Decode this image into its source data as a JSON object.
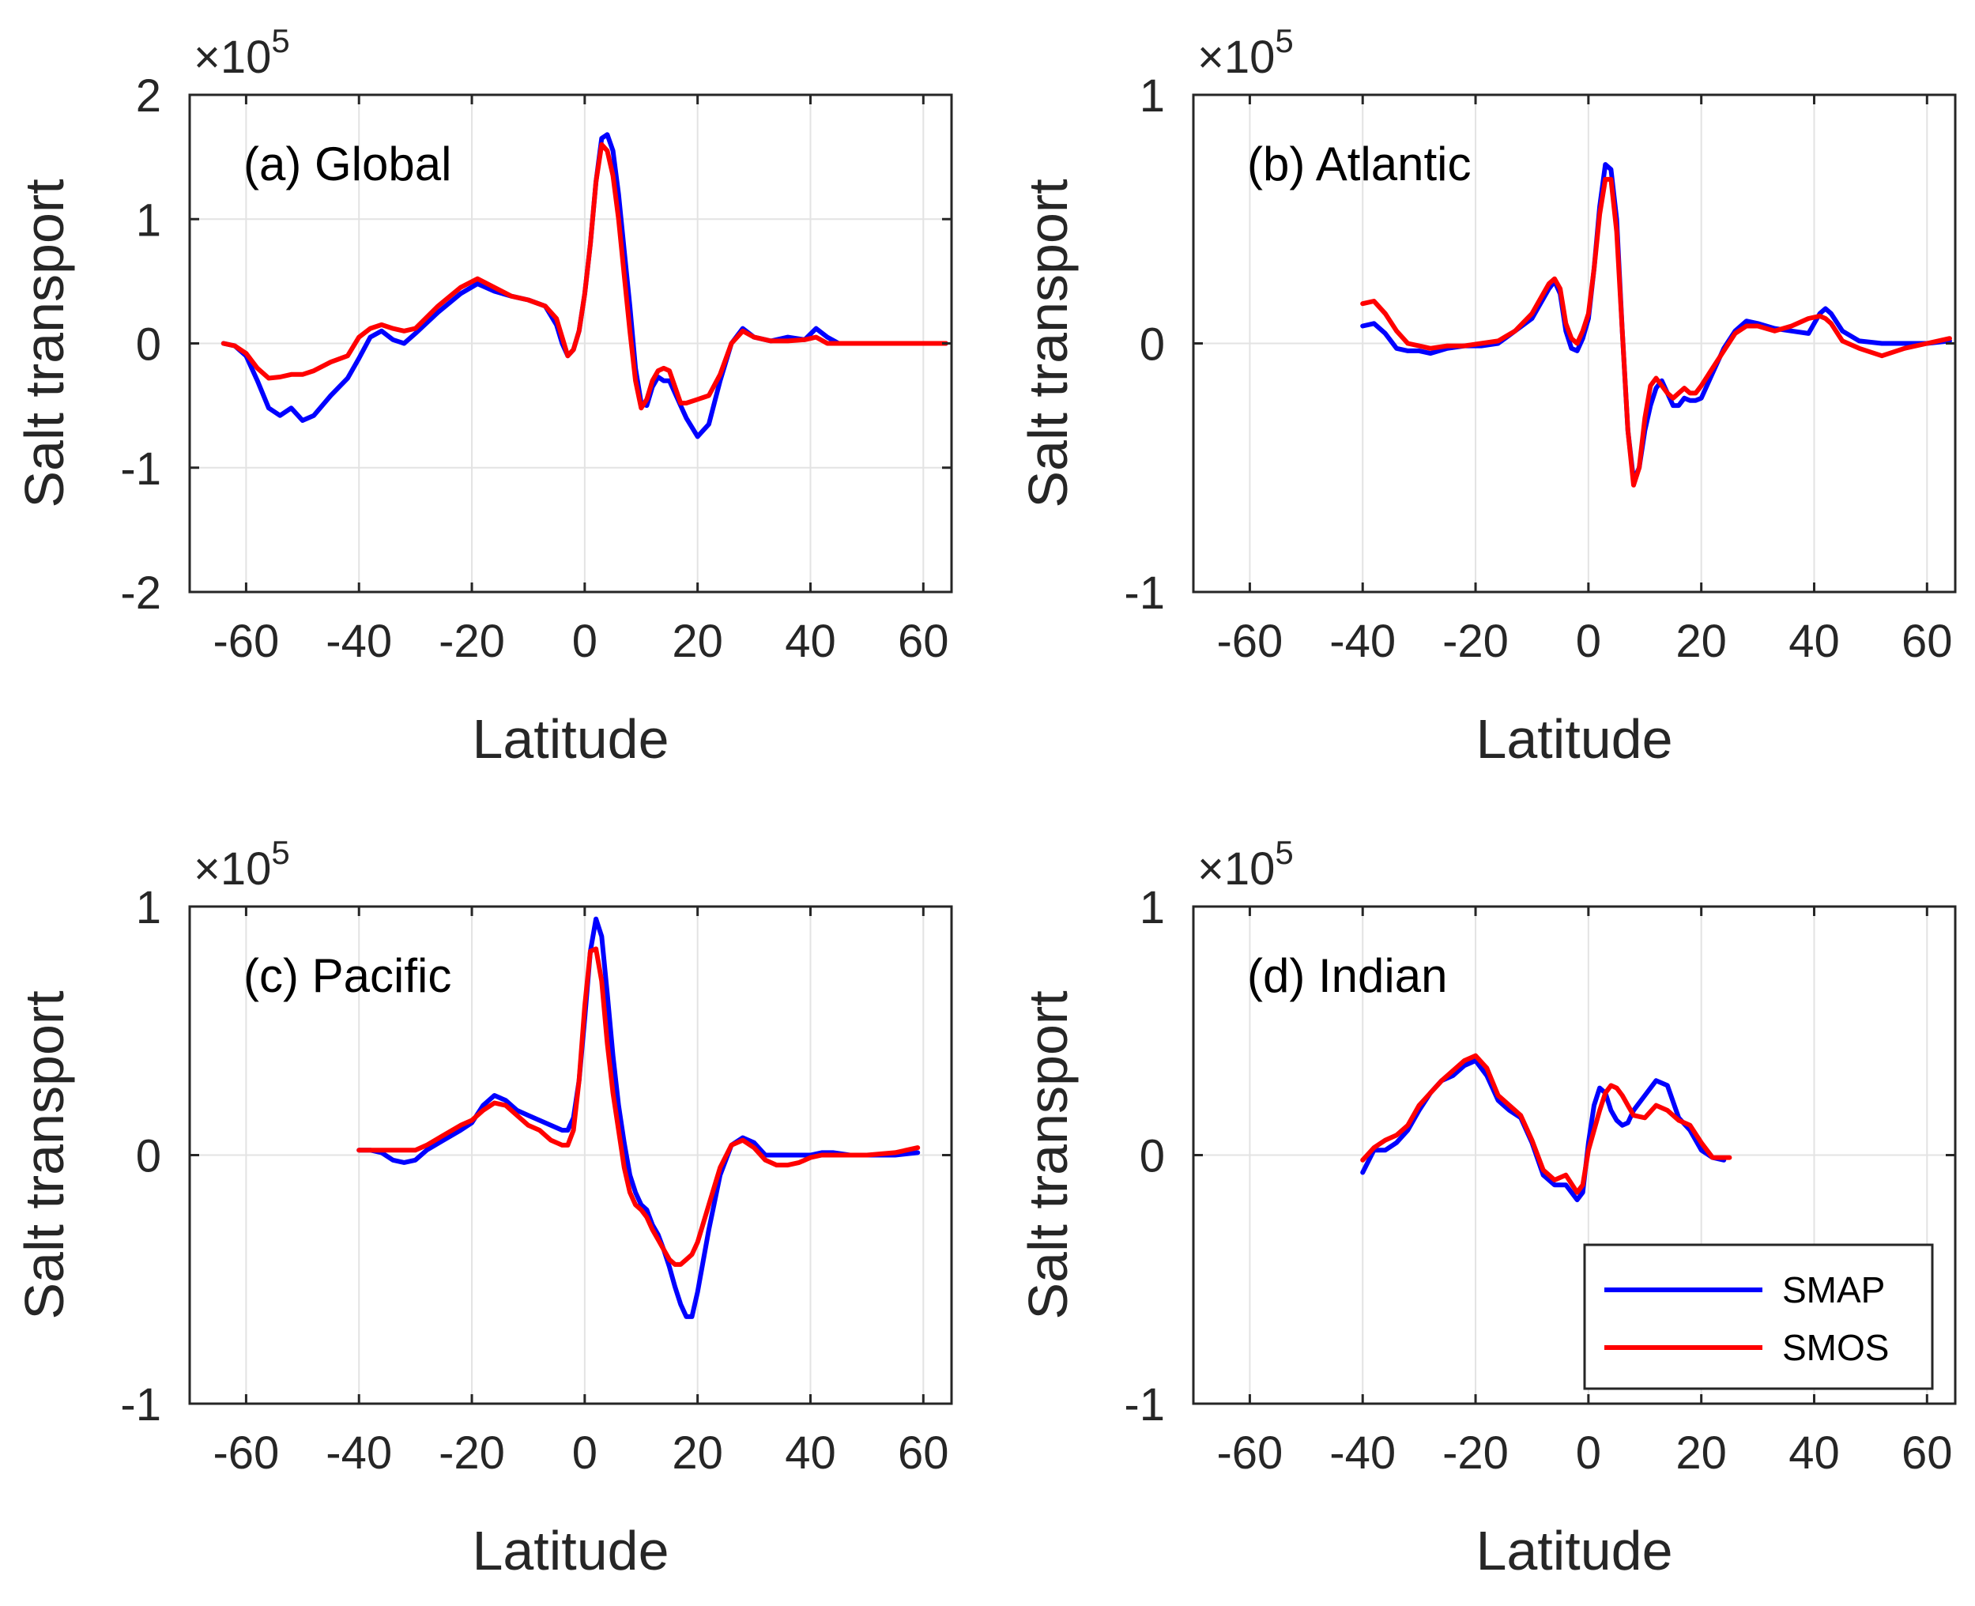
{
  "chart_data": [
    {
      "type": "line",
      "title": "(a) Global",
      "xlabel": "Latitude",
      "ylabel": "Salt transport",
      "exponent_label": "×10",
      "exponent": "5",
      "xlim": [
        -70,
        65
      ],
      "ylim": [
        -2,
        2
      ],
      "xticks": [
        "-60",
        "-40",
        "-20",
        "0",
        "20",
        "40",
        "60"
      ],
      "yticks": [
        "-2",
        "-1",
        "0",
        "1",
        "2"
      ],
      "series": [
        {
          "name": "SMAP",
          "color": "#0000ff",
          "x": [
            -64,
            -62,
            -60,
            -58,
            -56,
            -54,
            -52,
            -50,
            -48,
            -45,
            -42,
            -40,
            -38,
            -36,
            -34,
            -32,
            -30,
            -26,
            -22,
            -19,
            -16,
            -13,
            -10,
            -7,
            -5,
            -4,
            -3,
            -2,
            -1,
            0,
            1,
            2,
            3,
            4,
            5,
            6,
            7,
            8,
            9,
            10,
            11,
            12,
            13,
            14,
            15,
            16,
            17,
            18,
            20,
            22,
            24,
            26,
            28,
            30,
            33,
            36,
            39,
            41,
            43,
            45,
            48,
            52,
            56,
            60,
            64
          ],
          "y": [
            0,
            -0.02,
            -0.1,
            -0.3,
            -0.52,
            -0.58,
            -0.52,
            -0.62,
            -0.58,
            -0.42,
            -0.28,
            -0.12,
            0.05,
            0.1,
            0.03,
            0,
            0.08,
            0.25,
            0.4,
            0.48,
            0.42,
            0.38,
            0.35,
            0.3,
            0.15,
            0,
            -0.1,
            -0.05,
            0.1,
            0.4,
            0.8,
            1.3,
            1.65,
            1.68,
            1.55,
            1.2,
            0.75,
            0.3,
            -0.2,
            -0.48,
            -0.5,
            -0.35,
            -0.27,
            -0.3,
            -0.3,
            -0.4,
            -0.5,
            -0.6,
            -0.75,
            -0.65,
            -0.3,
            0,
            0.12,
            0.05,
            0.02,
            0.05,
            0.03,
            0.12,
            0.05,
            0,
            0,
            0,
            0,
            0,
            0
          ]
        },
        {
          "name": "SMOS",
          "color": "#ff0000",
          "x": [
            -64,
            -62,
            -60,
            -58,
            -56,
            -54,
            -52,
            -50,
            -48,
            -45,
            -42,
            -40,
            -38,
            -36,
            -34,
            -32,
            -30,
            -26,
            -22,
            -19,
            -16,
            -13,
            -10,
            -7,
            -5,
            -4,
            -3,
            -2,
            -1,
            0,
            1,
            2,
            3,
            4,
            5,
            6,
            7,
            8,
            9,
            10,
            11,
            12,
            13,
            14,
            15,
            16,
            17,
            18,
            20,
            22,
            24,
            26,
            28,
            30,
            33,
            36,
            39,
            41,
            43,
            45,
            48,
            52,
            56,
            60,
            64
          ],
          "y": [
            0,
            -0.02,
            -0.08,
            -0.2,
            -0.28,
            -0.27,
            -0.25,
            -0.25,
            -0.22,
            -0.15,
            -0.1,
            0.05,
            0.12,
            0.15,
            0.12,
            0.1,
            0.12,
            0.3,
            0.45,
            0.52,
            0.45,
            0.38,
            0.35,
            0.3,
            0.2,
            0.05,
            -0.1,
            -0.05,
            0.1,
            0.4,
            0.8,
            1.3,
            1.6,
            1.55,
            1.35,
            1,
            0.55,
            0.1,
            -0.3,
            -0.52,
            -0.45,
            -0.3,
            -0.22,
            -0.2,
            -0.22,
            -0.35,
            -0.48,
            -0.48,
            -0.45,
            -0.42,
            -0.25,
            0,
            0.1,
            0.05,
            0.02,
            0.02,
            0.03,
            0.05,
            0,
            0,
            0,
            0,
            0,
            0,
            0
          ]
        }
      ]
    },
    {
      "type": "line",
      "title": "(b) Atlantic",
      "xlabel": "Latitude",
      "ylabel": "Salt transport",
      "exponent_label": "×10",
      "exponent": "5",
      "xlim": [
        -70,
        65
      ],
      "ylim": [
        -1,
        1
      ],
      "xticks": [
        "-60",
        "-40",
        "-20",
        "0",
        "20",
        "40",
        "60"
      ],
      "yticks": [
        "-1",
        "0",
        "1"
      ],
      "series": [
        {
          "name": "SMAP",
          "color": "#0000ff",
          "x": [
            -40,
            -38,
            -36,
            -34,
            -32,
            -30,
            -28,
            -25,
            -22,
            -19,
            -16,
            -13,
            -10,
            -8,
            -7,
            -6,
            -5,
            -4,
            -3,
            -2,
            -1,
            0,
            1,
            2,
            3,
            4,
            5,
            6,
            7,
            8,
            9,
            10,
            11,
            12,
            13,
            14,
            15,
            16,
            17,
            18,
            19,
            20,
            22,
            24,
            26,
            28,
            30,
            33,
            36,
            39,
            41,
            42,
            43,
            45,
            48,
            52,
            56,
            60,
            64
          ],
          "y": [
            0.07,
            0.08,
            0.04,
            -0.02,
            -0.03,
            -0.03,
            -0.04,
            -0.02,
            -0.01,
            -0.01,
            0,
            0.05,
            0.1,
            0.18,
            0.22,
            0.25,
            0.2,
            0.05,
            -0.02,
            -0.03,
            0.02,
            0.1,
            0.3,
            0.55,
            0.72,
            0.7,
            0.5,
            0.05,
            -0.35,
            -0.55,
            -0.5,
            -0.35,
            -0.25,
            -0.18,
            -0.15,
            -0.2,
            -0.25,
            -0.25,
            -0.22,
            -0.23,
            -0.23,
            -0.22,
            -0.12,
            -0.02,
            0.05,
            0.09,
            0.08,
            0.06,
            0.05,
            0.04,
            0.12,
            0.14,
            0.12,
            0.05,
            0.01,
            0,
            0,
            0,
            0.01
          ]
        },
        {
          "name": "SMOS",
          "color": "#ff0000",
          "x": [
            -40,
            -38,
            -36,
            -34,
            -32,
            -30,
            -28,
            -25,
            -22,
            -19,
            -16,
            -13,
            -10,
            -8,
            -7,
            -6,
            -5,
            -4,
            -3,
            -2,
            -1,
            0,
            1,
            2,
            3,
            4,
            5,
            6,
            7,
            8,
            9,
            10,
            11,
            12,
            13,
            14,
            15,
            16,
            17,
            18,
            19,
            20,
            22,
            24,
            26,
            28,
            30,
            33,
            36,
            39,
            41,
            42,
            43,
            45,
            48,
            52,
            56,
            60,
            64
          ],
          "y": [
            0.16,
            0.17,
            0.12,
            0.05,
            0,
            -0.01,
            -0.02,
            -0.01,
            -0.01,
            0,
            0.01,
            0.05,
            0.12,
            0.2,
            0.24,
            0.26,
            0.22,
            0.08,
            0.02,
            0,
            0.05,
            0.12,
            0.3,
            0.52,
            0.66,
            0.66,
            0.45,
            0.05,
            -0.35,
            -0.57,
            -0.5,
            -0.3,
            -0.17,
            -0.14,
            -0.17,
            -0.2,
            -0.22,
            -0.2,
            -0.18,
            -0.2,
            -0.2,
            -0.17,
            -0.1,
            -0.03,
            0.04,
            0.07,
            0.07,
            0.05,
            0.07,
            0.1,
            0.11,
            0.1,
            0.08,
            0.01,
            -0.02,
            -0.05,
            -0.02,
            0,
            0.02
          ]
        }
      ]
    },
    {
      "type": "line",
      "title": "(c) Pacific",
      "xlabel": "Latitude",
      "ylabel": "Salt transport",
      "exponent_label": "×10",
      "exponent": "5",
      "xlim": [
        -70,
        65
      ],
      "ylim": [
        -1,
        1
      ],
      "xticks": [
        "-60",
        "-40",
        "-20",
        "0",
        "20",
        "40",
        "60"
      ],
      "yticks": [
        "-1",
        "0",
        "1"
      ],
      "series": [
        {
          "name": "SMAP",
          "color": "#0000ff",
          "x": [
            -40,
            -38,
            -36,
            -34,
            -32,
            -30,
            -28,
            -25,
            -22,
            -20,
            -18,
            -16,
            -14,
            -12,
            -10,
            -8,
            -6,
            -4,
            -3,
            -2,
            -1,
            0,
            1,
            2,
            3,
            4,
            5,
            6,
            7,
            8,
            9,
            10,
            11,
            12,
            13,
            14,
            15,
            16,
            17,
            18,
            19,
            20,
            22,
            24,
            26,
            28,
            30,
            32,
            34,
            36,
            38,
            40,
            42,
            44,
            47,
            50,
            55,
            59
          ],
          "y": [
            0.02,
            0.02,
            0.01,
            -0.02,
            -0.03,
            -0.02,
            0.02,
            0.06,
            0.1,
            0.13,
            0.2,
            0.24,
            0.22,
            0.18,
            0.16,
            0.14,
            0.12,
            0.1,
            0.1,
            0.15,
            0.3,
            0.55,
            0.82,
            0.95,
            0.88,
            0.65,
            0.4,
            0.2,
            0.05,
            -0.08,
            -0.15,
            -0.2,
            -0.22,
            -0.28,
            -0.32,
            -0.38,
            -0.45,
            -0.53,
            -0.6,
            -0.65,
            -0.65,
            -0.55,
            -0.3,
            -0.08,
            0.04,
            0.07,
            0.05,
            0,
            0,
            0,
            0,
            0,
            0.01,
            0.01,
            0,
            0,
            0,
            0.01
          ]
        },
        {
          "name": "SMOS",
          "color": "#ff0000",
          "x": [
            -40,
            -38,
            -36,
            -34,
            -32,
            -30,
            -28,
            -25,
            -22,
            -20,
            -18,
            -16,
            -14,
            -12,
            -10,
            -8,
            -6,
            -4,
            -3,
            -2,
            -1,
            0,
            1,
            2,
            3,
            4,
            5,
            6,
            7,
            8,
            9,
            10,
            11,
            12,
            13,
            14,
            15,
            16,
            17,
            18,
            19,
            20,
            22,
            24,
            26,
            28,
            30,
            32,
            34,
            36,
            38,
            40,
            42,
            44,
            47,
            50,
            55,
            59
          ],
          "y": [
            0.02,
            0.02,
            0.02,
            0.02,
            0.02,
            0.02,
            0.04,
            0.08,
            0.12,
            0.14,
            0.18,
            0.21,
            0.2,
            0.16,
            0.12,
            0.1,
            0.06,
            0.04,
            0.04,
            0.1,
            0.3,
            0.6,
            0.82,
            0.83,
            0.7,
            0.45,
            0.25,
            0.1,
            -0.05,
            -0.15,
            -0.2,
            -0.22,
            -0.25,
            -0.3,
            -0.34,
            -0.38,
            -0.42,
            -0.44,
            -0.44,
            -0.42,
            -0.4,
            -0.35,
            -0.2,
            -0.05,
            0.04,
            0.06,
            0.03,
            -0.02,
            -0.04,
            -0.04,
            -0.03,
            -0.01,
            0,
            0,
            0,
            0,
            0.01,
            0.03
          ]
        }
      ]
    },
    {
      "type": "line",
      "title": "(d) Indian",
      "xlabel": "Latitude",
      "ylabel": "Salt transport",
      "exponent_label": "×10",
      "exponent": "5",
      "xlim": [
        -70,
        65
      ],
      "ylim": [
        -1,
        1
      ],
      "xticks": [
        "-60",
        "-40",
        "-20",
        "0",
        "20",
        "40",
        "60"
      ],
      "yticks": [
        "-1",
        "0",
        "1"
      ],
      "series": [
        {
          "name": "SMAP",
          "color": "#0000ff",
          "x": [
            -40,
            -38,
            -36,
            -34,
            -32,
            -30,
            -28,
            -26,
            -24,
            -22,
            -20,
            -18,
            -16,
            -14,
            -12,
            -10,
            -8,
            -6,
            -4,
            -2,
            -1,
            0,
            1,
            2,
            3,
            4,
            5,
            6,
            7,
            8,
            10,
            12,
            14,
            16,
            18,
            20,
            22,
            24
          ],
          "y": [
            -0.07,
            0.02,
            0.02,
            0.05,
            0.1,
            0.18,
            0.25,
            0.3,
            0.32,
            0.36,
            0.38,
            0.32,
            0.22,
            0.18,
            0.15,
            0.05,
            -0.08,
            -0.12,
            -0.12,
            -0.18,
            -0.15,
            0.05,
            0.2,
            0.27,
            0.25,
            0.18,
            0.14,
            0.12,
            0.13,
            0.18,
            0.24,
            0.3,
            0.28,
            0.15,
            0.1,
            0.02,
            -0.01,
            -0.02
          ]
        },
        {
          "name": "SMOS",
          "color": "#ff0000",
          "x": [
            -40,
            -38,
            -36,
            -34,
            -32,
            -30,
            -28,
            -26,
            -24,
            -22,
            -20,
            -18,
            -16,
            -14,
            -12,
            -10,
            -8,
            -6,
            -4,
            -2,
            -1,
            0,
            1,
            2,
            3,
            4,
            5,
            6,
            7,
            8,
            10,
            12,
            14,
            16,
            18,
            20,
            22,
            24,
            25
          ],
          "y": [
            -0.02,
            0.03,
            0.06,
            0.08,
            0.12,
            0.2,
            0.25,
            0.3,
            0.34,
            0.38,
            0.4,
            0.35,
            0.24,
            0.2,
            0.16,
            0.06,
            -0.06,
            -0.1,
            -0.08,
            -0.15,
            -0.12,
            0.02,
            0.1,
            0.18,
            0.25,
            0.28,
            0.27,
            0.24,
            0.2,
            0.16,
            0.15,
            0.2,
            0.18,
            0.14,
            0.12,
            0.05,
            -0.01,
            -0.01,
            -0.01
          ]
        }
      ]
    }
  ],
  "legend": {
    "items": [
      {
        "label": "SMAP",
        "color": "#0000ff"
      },
      {
        "label": "SMOS",
        "color": "#ff0000"
      }
    ],
    "location": "bottom-right of panel (d)"
  }
}
